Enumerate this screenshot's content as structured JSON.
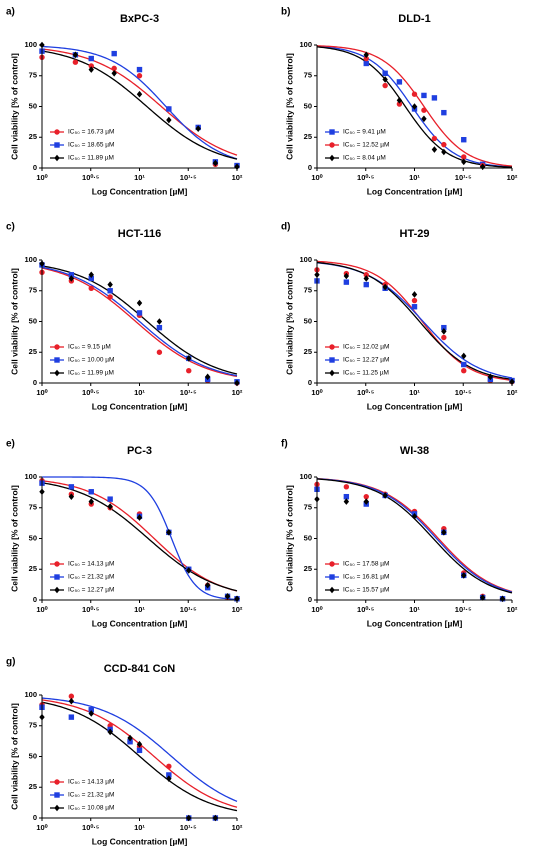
{
  "chart_data": [
    {
      "type": "scatter",
      "panel_label": "a)",
      "title": "BxPC-3",
      "x_label": "Log Concentration [µM]",
      "y_label": "Cell viability [% of control]",
      "xscale": "log",
      "xlim": [
        1,
        100
      ],
      "ylim": [
        0,
        100
      ],
      "xticks": [
        {
          "value": 1,
          "label": "10⁰"
        },
        {
          "value": 3.162,
          "label": "10⁰·⁵"
        },
        {
          "value": 10,
          "label": "10¹"
        },
        {
          "value": 31.62,
          "label": "10¹·⁵"
        },
        {
          "value": 100,
          "label": "10²"
        }
      ],
      "yticks": [
        0,
        25,
        50,
        75,
        100
      ],
      "legend": "lower left",
      "x": [
        1,
        2.2,
        3.2,
        5.5,
        10,
        20,
        40,
        60,
        100
      ],
      "series": [
        {
          "name": "IC₅₀ = 16.73 µM",
          "color": "#e8202a",
          "marker": "circle",
          "ic50": 16.73,
          "hill": 1.2,
          "values": [
            90,
            86,
            83,
            81,
            75,
            48,
            33,
            3,
            2
          ]
        },
        {
          "name": "IC₅₀ = 18.65 µM",
          "color": "#1f3fe0",
          "marker": "square",
          "ic50": 18.65,
          "hill": 1.5,
          "values": [
            95,
            92,
            89,
            93,
            80,
            48,
            33,
            5,
            2
          ]
        },
        {
          "name": "IC₅₀ = 11.89 µM",
          "color": "#000000",
          "marker": "diamond",
          "ic50": 11.89,
          "hill": 1.2,
          "values": [
            100,
            92,
            80,
            77,
            60,
            39,
            32,
            4,
            1
          ]
        }
      ]
    },
    {
      "type": "scatter",
      "panel_label": "b)",
      "title": "DLD-1",
      "x_label": "Log Concentration [µM]",
      "y_label": "Cell viability [% of control]",
      "xscale": "log",
      "xlim": [
        1,
        100
      ],
      "ylim": [
        0,
        100
      ],
      "xticks": [
        {
          "value": 1,
          "label": "10⁰"
        },
        {
          "value": 3.162,
          "label": "10⁰·⁵"
        },
        {
          "value": 10,
          "label": "10¹"
        },
        {
          "value": 31.62,
          "label": "10¹·⁵"
        },
        {
          "value": 100,
          "label": "10²"
        }
      ],
      "yticks": [
        0,
        25,
        50,
        75,
        100
      ],
      "legend": "lower left",
      "x": [
        3.2,
        5,
        7,
        10,
        12.5,
        16,
        20,
        32,
        50
      ],
      "series": [
        {
          "name": "IC₅₀ = 9.41 µM",
          "color": "#1f3fe0",
          "marker": "square",
          "ic50": 9.41,
          "hill": 2,
          "values": [
            85,
            77,
            70,
            48,
            59,
            57,
            45,
            23,
            3
          ]
        },
        {
          "name": "IC₅₀ = 12.52 µM",
          "color": "#e8202a",
          "marker": "circle",
          "ic50": 12.52,
          "hill": 2,
          "values": [
            89,
            67,
            52,
            60,
            47,
            24,
            19,
            9,
            2
          ]
        },
        {
          "name": "IC₅₀ = 8.04 µM",
          "color": "#000000",
          "marker": "diamond",
          "ic50": 8.04,
          "hill": 2,
          "values": [
            92,
            72,
            55,
            50,
            40,
            15,
            13,
            5,
            1
          ]
        }
      ]
    },
    {
      "type": "scatter",
      "panel_label": "c)",
      "title": "HCT-116",
      "x_label": "Log Concentration [µM]",
      "y_label": "Cell viability [% of control]",
      "xscale": "log",
      "xlim": [
        1,
        100
      ],
      "ylim": [
        0,
        100
      ],
      "xticks": [
        {
          "value": 1,
          "label": "10⁰"
        },
        {
          "value": 3.162,
          "label": "10⁰·⁵"
        },
        {
          "value": 10,
          "label": "10¹"
        },
        {
          "value": 31.62,
          "label": "10¹·⁵"
        },
        {
          "value": 100,
          "label": "10²"
        }
      ],
      "yticks": [
        0,
        25,
        50,
        75,
        100
      ],
      "legend": "lower left",
      "x": [
        1,
        2,
        3.2,
        5,
        10,
        16,
        32,
        50,
        100
      ],
      "series": [
        {
          "name": "IC₅₀ = 9.15 µM",
          "color": "#e8202a",
          "marker": "circle",
          "ic50": 9.15,
          "hill": 1.2,
          "values": [
            90,
            83,
            77,
            70,
            55,
            25,
            10,
            2,
            0
          ]
        },
        {
          "name": "IC₅₀ = 10.00 µM",
          "color": "#1f3fe0",
          "marker": "square",
          "ic50": 10,
          "hill": 1.2,
          "values": [
            96,
            88,
            85,
            75,
            57,
            45,
            20,
            3,
            1
          ]
        },
        {
          "name": "IC₅₀ = 11.99 µM",
          "color": "#000000",
          "marker": "diamond",
          "ic50": 11.99,
          "hill": 1.2,
          "values": [
            97,
            85,
            88,
            80,
            65,
            50,
            20,
            5,
            0
          ]
        }
      ]
    },
    {
      "type": "scatter",
      "panel_label": "d)",
      "title": "HT-29",
      "x_label": "Log Concentration [µM]",
      "y_label": "Cell viability [% of control]",
      "xscale": "log",
      "xlim": [
        1,
        100
      ],
      "ylim": [
        0,
        100
      ],
      "xticks": [
        {
          "value": 1,
          "label": "10⁰"
        },
        {
          "value": 3.162,
          "label": "10⁰·⁵"
        },
        {
          "value": 10,
          "label": "10¹"
        },
        {
          "value": 31.62,
          "label": "10¹·⁵"
        },
        {
          "value": 100,
          "label": "10²"
        }
      ],
      "yticks": [
        0,
        25,
        50,
        75,
        100
      ],
      "legend": "lower left",
      "x": [
        1,
        2,
        3.2,
        5,
        10,
        20,
        32,
        60,
        100
      ],
      "series": [
        {
          "name": "IC₅₀ = 12.02 µM",
          "color": "#e8202a",
          "marker": "circle",
          "ic50": 12.02,
          "hill": 1.8,
          "values": [
            92,
            89,
            88,
            80,
            67,
            37,
            10,
            2,
            1
          ]
        },
        {
          "name": "IC₅₀ = 12.27 µM",
          "color": "#1f3fe0",
          "marker": "square",
          "ic50": 12.27,
          "hill": 1.5,
          "values": [
            83,
            82,
            80,
            77,
            62,
            45,
            15,
            3,
            2
          ]
        },
        {
          "name": "IC₅₀ = 11.25 µM",
          "color": "#000000",
          "marker": "diamond",
          "ic50": 11.25,
          "hill": 1.6,
          "values": [
            88,
            87,
            85,
            78,
            72,
            42,
            22,
            5,
            1
          ]
        }
      ]
    },
    {
      "type": "scatter",
      "panel_label": "e)",
      "title": "PC-3",
      "x_label": "Log Concentration [µM]",
      "y_label": "Cell viability [% of control]",
      "xscale": "log",
      "xlim": [
        1,
        100
      ],
      "ylim": [
        0,
        100
      ],
      "xticks": [
        {
          "value": 1,
          "label": "10⁰"
        },
        {
          "value": 3.162,
          "label": "10⁰·⁵"
        },
        {
          "value": 10,
          "label": "10¹"
        },
        {
          "value": 31.62,
          "label": "10¹·⁵"
        },
        {
          "value": 100,
          "label": "10²"
        }
      ],
      "yticks": [
        0,
        25,
        50,
        75,
        100
      ],
      "legend": "lower left",
      "x": [
        1,
        2,
        3.2,
        5,
        10,
        20,
        32,
        50,
        80,
        100
      ],
      "series": [
        {
          "name": "IC₅₀ = 14.13 µM",
          "color": "#e8202a",
          "marker": "circle",
          "ic50": 14.13,
          "hill": 1.3,
          "values": [
            97,
            86,
            78,
            75,
            70,
            55,
            25,
            12,
            2,
            1
          ]
        },
        {
          "name": "IC₅₀ = 21.32 µM",
          "color": "#1f3fe0",
          "marker": "square",
          "ic50": 21.32,
          "hill": 3.5,
          "values": [
            95,
            92,
            88,
            82,
            68,
            55,
            25,
            10,
            3,
            1
          ]
        },
        {
          "name": "IC₅₀ = 12.27 µM",
          "color": "#000000",
          "marker": "diamond",
          "ic50": 12.27,
          "hill": 1.2,
          "values": [
            88,
            84,
            80,
            76,
            67,
            55,
            24,
            12,
            3,
            1
          ]
        }
      ]
    },
    {
      "type": "scatter",
      "panel_label": "f)",
      "title": "WI-38",
      "x_label": "Log Concentration [µM]",
      "y_label": "Cell viability [% of control]",
      "xscale": "log",
      "xlim": [
        1,
        100
      ],
      "ylim": [
        0,
        100
      ],
      "xticks": [
        {
          "value": 1,
          "label": "10⁰"
        },
        {
          "value": 3.162,
          "label": "10⁰·⁵"
        },
        {
          "value": 10,
          "label": "10¹"
        },
        {
          "value": 31.62,
          "label": "10¹·⁵"
        },
        {
          "value": 100,
          "label": "10²"
        }
      ],
      "yticks": [
        0,
        25,
        50,
        75,
        100
      ],
      "legend": "lower left",
      "x": [
        1,
        2,
        3.2,
        5,
        10,
        20,
        32,
        50,
        80
      ],
      "series": [
        {
          "name": "IC₅₀ = 17.58 µM",
          "color": "#e8202a",
          "marker": "circle",
          "ic50": 17.58,
          "hill": 1.5,
          "values": [
            94,
            92,
            84,
            86,
            72,
            58,
            22,
            3,
            1
          ]
        },
        {
          "name": "IC₅₀ = 16.81 µM",
          "color": "#1f3fe0",
          "marker": "square",
          "ic50": 16.81,
          "hill": 1.5,
          "values": [
            90,
            84,
            78,
            85,
            70,
            55,
            20,
            2,
            1
          ]
        },
        {
          "name": "IC₅₀ = 15.57 µM",
          "color": "#000000",
          "marker": "diamond",
          "ic50": 15.57,
          "hill": 1.5,
          "values": [
            82,
            80,
            80,
            85,
            68,
            55,
            20,
            2,
            1
          ]
        }
      ]
    },
    {
      "type": "scatter",
      "panel_label": "g)",
      "title": "CCD-841 CoN",
      "x_label": "Log Concentration [µM]",
      "y_label": "Cell viability [% of control]",
      "xscale": "log",
      "xlim": [
        1,
        100
      ],
      "ylim": [
        0,
        100
      ],
      "xticks": [
        {
          "value": 1,
          "label": "10⁰"
        },
        {
          "value": 3.162,
          "label": "10⁰·⁵"
        },
        {
          "value": 10,
          "label": "10¹"
        },
        {
          "value": 31.62,
          "label": "10¹·⁵"
        },
        {
          "value": 100,
          "label": "10²"
        }
      ],
      "yticks": [
        0,
        25,
        50,
        75,
        100
      ],
      "legend": "lower left",
      "x": [
        1,
        2,
        3.2,
        5,
        8,
        10,
        20,
        32,
        60
      ],
      "series": [
        {
          "name": "IC₅₀ = 14.13 µM",
          "color": "#e8202a",
          "marker": "circle",
          "ic50": 14.13,
          "hill": 1.2,
          "values": [
            92,
            99,
            88,
            75,
            62,
            58,
            42,
            0,
            0
          ]
        },
        {
          "name": "IC₅₀ = 21.32 µM",
          "color": "#1f3fe0",
          "marker": "square",
          "ic50": 21.32,
          "hill": 1.2,
          "values": [
            90,
            82,
            88,
            72,
            62,
            55,
            35,
            0,
            0
          ]
        },
        {
          "name": "IC₅₀ = 10.08 µM",
          "color": "#000000",
          "marker": "diamond",
          "ic50": 10.08,
          "hill": 1.2,
          "values": [
            82,
            95,
            85,
            70,
            65,
            60,
            32,
            0,
            0
          ]
        }
      ]
    }
  ]
}
